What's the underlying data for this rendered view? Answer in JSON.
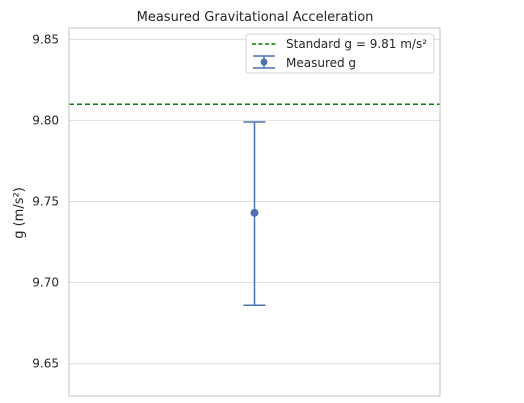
{
  "chart_data": {
    "type": "scatter",
    "title": "Measured Gravitational Acceleration",
    "xlabel": "",
    "ylabel": "g (m/s²)",
    "ylim": [
      9.63,
      9.857
    ],
    "yticks": [
      9.65,
      9.7,
      9.75,
      9.8,
      9.85
    ],
    "ytick_labels": [
      "9.65",
      "9.70",
      "9.75",
      "9.80",
      "9.85"
    ],
    "grid": true,
    "legend_position": "top-right",
    "series": [
      {
        "name": "Measured g",
        "kind": "errorbar",
        "x": [
          0
        ],
        "y": [
          9.743
        ],
        "err_low": [
          9.686
        ],
        "err_high": [
          9.799
        ],
        "color": "#4c72b0"
      }
    ],
    "reference_lines": [
      {
        "name": "Standard g = 9.81 m/s²",
        "y": 9.81,
        "style": "dashed",
        "color": "#008000"
      }
    ]
  }
}
